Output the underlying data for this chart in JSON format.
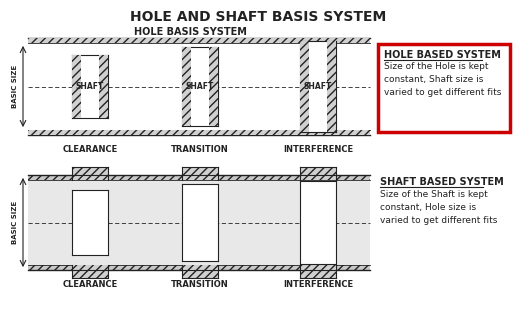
{
  "title": "HOLE AND SHAFT BASIS SYSTEM",
  "title_fontsize": 10,
  "bg_color": "#ffffff",
  "hole_basis_label": "HOLE BASIS SYSTEM",
  "hole_based_system_title": "HOLE BASED SYSTEM",
  "hole_based_system_text": "Size of the Hole is kept\nconstant, Shaft size is\nvaried to get different fits",
  "shaft_based_system_title": "SHAFT BASED SYSTEM",
  "shaft_based_system_text": "Size of the Shaft is kept\nconstant, Hole size is\nvaried to get different fits",
  "clearance_label": "CLEARANCE",
  "transition_label": "TRANSITION",
  "interference_label": "INTERFERENCE",
  "basic_size_label": "BASIC SIZE",
  "line_color": "#222222",
  "red_box_color": "#cc0000",
  "fig_w": 5.17,
  "fig_h": 3.3,
  "dpi": 100
}
